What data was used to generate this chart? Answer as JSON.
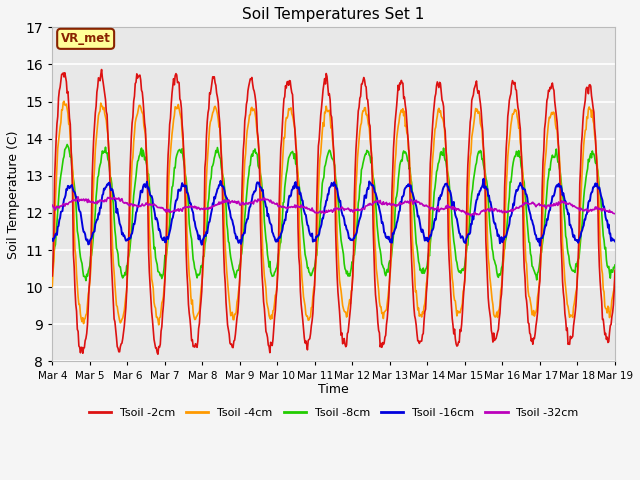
{
  "title": "Soil Temperatures Set 1",
  "xlabel": "Time",
  "ylabel": "Soil Temperature (C)",
  "ylim": [
    8.0,
    17.0
  ],
  "yticks": [
    8.0,
    9.0,
    10.0,
    11.0,
    12.0,
    13.0,
    14.0,
    15.0,
    16.0,
    17.0
  ],
  "xtick_labels": [
    "Mar 4",
    "Mar 5",
    "Mar 6",
    "Mar 7",
    "Mar 8",
    "Mar 9",
    "Mar 10",
    "Mar 11",
    "Mar 12",
    "Mar 13",
    "Mar 14",
    "Mar 15",
    "Mar 16",
    "Mar 17",
    "Mar 18",
    "Mar 19"
  ],
  "colors": {
    "Tsoil -2cm": "#dd1111",
    "Tsoil -4cm": "#ff9900",
    "Tsoil -8cm": "#22cc00",
    "Tsoil -16cm": "#0000dd",
    "Tsoil -32cm": "#bb00bb"
  },
  "annotation_text": "VR_met",
  "annotation_color": "#882200",
  "annotation_bg": "#ffff99",
  "plot_bg": "#e8e8e8",
  "fig_bg": "#f5f5f5",
  "grid_color": "#ffffff",
  "n_points": 720
}
